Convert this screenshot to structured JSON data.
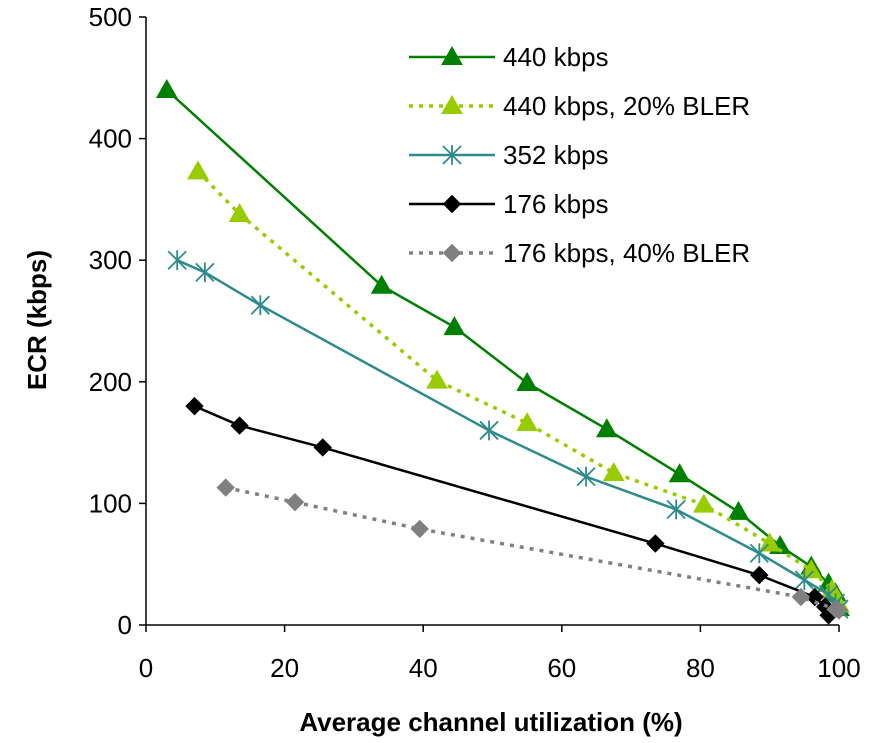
{
  "chart_data": {
    "type": "line",
    "xlabel": "Average channel utilization (%)",
    "ylabel": "ECR (kbps)",
    "xlim": [
      0,
      100
    ],
    "ylim": [
      0,
      500
    ],
    "xticks": [
      0,
      20,
      40,
      60,
      80,
      100
    ],
    "yticks": [
      0,
      100,
      200,
      300,
      400,
      500
    ],
    "grid": false,
    "legend_position": "top-right",
    "series": [
      {
        "name": "440 kbps",
        "color": "#008000",
        "dash": "solid",
        "marker": "triangle",
        "x": [
          3,
          34,
          44.5,
          55,
          66.5,
          77,
          85.5,
          91.5,
          96,
          98.5,
          99.5,
          100
        ],
        "y": [
          440,
          279,
          245,
          199,
          161,
          124,
          93,
          65,
          48,
          34,
          26,
          14
        ]
      },
      {
        "name": "440 kbps, 20% BLER",
        "color": "#99cc00",
        "dash": "dotted",
        "marker": "triangle",
        "x": [
          7.5,
          13.5,
          42,
          55,
          67.5,
          80.5,
          90,
          96,
          99,
          100
        ],
        "y": [
          373,
          338,
          201,
          166,
          125,
          99,
          67,
          45,
          29,
          17
        ]
      },
      {
        "name": "352 kbps",
        "color": "#2e8b8b",
        "dash": "solid",
        "marker": "asterisk",
        "x": [
          4.5,
          8.5,
          16.5,
          49.5,
          63.5,
          76.5,
          88.5,
          95,
          98.5,
          99.5,
          100
        ],
        "y": [
          300,
          290,
          263,
          160,
          122,
          95,
          59,
          37,
          25,
          18,
          13
        ]
      },
      {
        "name": "176 kbps",
        "color": "#000000",
        "dash": "solid",
        "marker": "diamond",
        "x": [
          7,
          13.5,
          25.5,
          73.5,
          88.5,
          96.5,
          98,
          98.5
        ],
        "y": [
          180,
          164,
          146,
          67,
          41,
          23,
          15,
          8
        ]
      },
      {
        "name": "176 kbps, 40% BLER",
        "color": "#808080",
        "dash": "dotted",
        "marker": "diamond",
        "x": [
          11.5,
          21.5,
          39.5,
          94.5,
          99.5,
          100
        ],
        "y": [
          113,
          101,
          79,
          23,
          13,
          12
        ]
      }
    ]
  }
}
